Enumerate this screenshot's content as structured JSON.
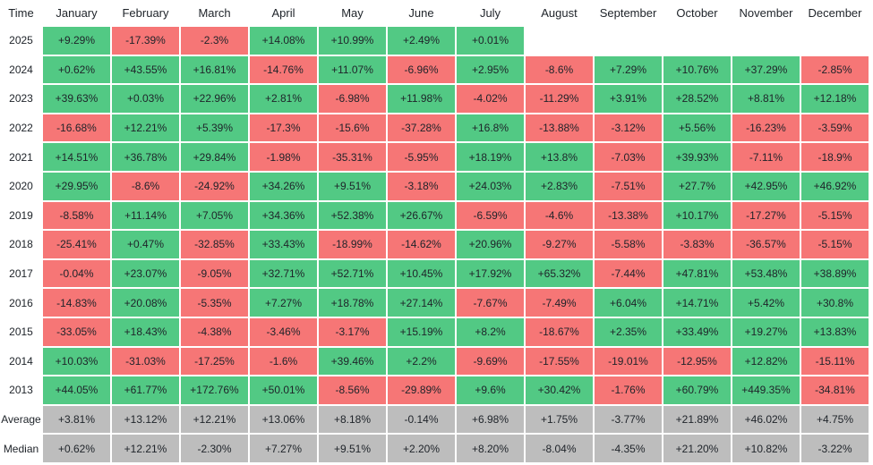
{
  "table": {
    "header": [
      "Time",
      "January",
      "February",
      "March",
      "April",
      "May",
      "June",
      "July",
      "August",
      "September",
      "October",
      "November",
      "December"
    ],
    "rows": [
      [
        "2025",
        "+9.29%",
        "-17.39%",
        "-2.3%",
        "+14.08%",
        "+10.99%",
        "+2.49%",
        "+0.01%"
      ],
      [
        "2024",
        "+0.62%",
        "+43.55%",
        "+16.81%",
        "-14.76%",
        "+11.07%",
        "-6.96%",
        "+2.95%",
        "-8.6%",
        "+7.29%",
        "+10.76%",
        "+37.29%",
        "-2.85%"
      ],
      [
        "2023",
        "+39.63%",
        "+0.03%",
        "+22.96%",
        "+2.81%",
        "-6.98%",
        "+11.98%",
        "-4.02%",
        "-11.29%",
        "+3.91%",
        "+28.52%",
        "+8.81%",
        "+12.18%"
      ],
      [
        "2022",
        "-16.68%",
        "+12.21%",
        "+5.39%",
        "-17.3%",
        "-15.6%",
        "-37.28%",
        "+16.8%",
        "-13.88%",
        "-3.12%",
        "+5.56%",
        "-16.23%",
        "-3.59%"
      ],
      [
        "2021",
        "+14.51%",
        "+36.78%",
        "+29.84%",
        "-1.98%",
        "-35.31%",
        "-5.95%",
        "+18.19%",
        "+13.8%",
        "-7.03%",
        "+39.93%",
        "-7.11%",
        "-18.9%"
      ],
      [
        "2020",
        "+29.95%",
        "-8.6%",
        "-24.92%",
        "+34.26%",
        "+9.51%",
        "-3.18%",
        "+24.03%",
        "+2.83%",
        "-7.51%",
        "+27.7%",
        "+42.95%",
        "+46.92%"
      ],
      [
        "2019",
        "-8.58%",
        "+11.14%",
        "+7.05%",
        "+34.36%",
        "+52.38%",
        "+26.67%",
        "-6.59%",
        "-4.6%",
        "-13.38%",
        "+10.17%",
        "-17.27%",
        "-5.15%"
      ],
      [
        "2018",
        "-25.41%",
        "+0.47%",
        "-32.85%",
        "+33.43%",
        "-18.99%",
        "-14.62%",
        "+20.96%",
        "-9.27%",
        "-5.58%",
        "-3.83%",
        "-36.57%",
        "-5.15%"
      ],
      [
        "2017",
        "-0.04%",
        "+23.07%",
        "-9.05%",
        "+32.71%",
        "+52.71%",
        "+10.45%",
        "+17.92%",
        "+65.32%",
        "-7.44%",
        "+47.81%",
        "+53.48%",
        "+38.89%"
      ],
      [
        "2016",
        "-14.83%",
        "+20.08%",
        "-5.35%",
        "+7.27%",
        "+18.78%",
        "+27.14%",
        "-7.67%",
        "-7.49%",
        "+6.04%",
        "+14.71%",
        "+5.42%",
        "+30.8%"
      ],
      [
        "2015",
        "-33.05%",
        "+18.43%",
        "-4.38%",
        "-3.46%",
        "-3.17%",
        "+15.19%",
        "+8.2%",
        "-18.67%",
        "+2.35%",
        "+33.49%",
        "+19.27%",
        "+13.83%"
      ],
      [
        "2014",
        "+10.03%",
        "-31.03%",
        "-17.25%",
        "-1.6%",
        "+39.46%",
        "+2.2%",
        "-9.69%",
        "-17.55%",
        "-19.01%",
        "-12.95%",
        "+12.82%",
        "-15.11%"
      ],
      [
        "2013",
        "+44.05%",
        "+61.77%",
        "+172.76%",
        "+50.01%",
        "-8.56%",
        "-29.89%",
        "+9.6%",
        "+30.42%",
        "-1.76%",
        "+60.79%",
        "+449.35%",
        "-34.81%"
      ]
    ],
    "summary_rows": [
      [
        "Average",
        "+3.81%",
        "+13.12%",
        "+12.21%",
        "+13.06%",
        "+8.18%",
        "-0.14%",
        "+6.98%",
        "+1.75%",
        "-3.77%",
        "+21.89%",
        "+46.02%",
        "+4.75%"
      ],
      [
        "Median",
        "+0.62%",
        "+12.21%",
        "-2.30%",
        "+7.27%",
        "+9.51%",
        "+2.20%",
        "+8.20%",
        "-8.04%",
        "-4.35%",
        "+21.20%",
        "+10.82%",
        "-3.22%"
      ]
    ]
  }
}
